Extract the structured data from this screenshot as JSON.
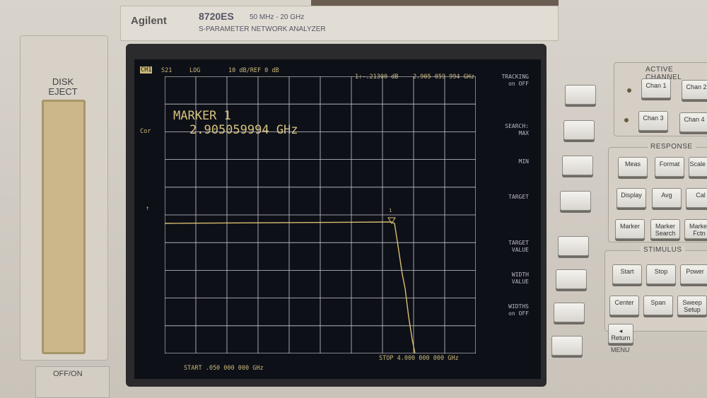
{
  "header": {
    "brand": "Agilent",
    "model": "8720ES",
    "frequency_range": "50 MHz - 20 GHz",
    "description": "S-PARAMETER NETWORK ANALYZER"
  },
  "left_panel": {
    "disk_eject": "DISK EJECT",
    "power_label": "OFF/ON"
  },
  "display": {
    "channel": "CH1",
    "parameter": "S21",
    "format": "LOG",
    "scale": "10 dB/REF 0 dB",
    "marker_readout": "1:-.21300 dB",
    "marker_freq_readout": "2.905 059 994 GHz",
    "marker_title": "MARKER 1",
    "marker_value": "2.905059994 GHz",
    "correction": "Cor",
    "ref_arrow": "↑",
    "marker_num": "1",
    "start": "START .050 000 000 GHz",
    "stop": "STOP 4.000 000 000 GHz",
    "trace_color": "#d8c070",
    "grid_color": "#c8c8d0"
  },
  "softkeys": [
    {
      "line1": "TRACKING",
      "line2": "on OFF"
    },
    {
      "line1": "SEARCH:",
      "line2": "MAX"
    },
    {
      "line1": "MIN",
      "line2": ""
    },
    {
      "line1": "TARGET",
      "line2": ""
    },
    {
      "line1": "TARGET",
      "line2": "VALUE"
    },
    {
      "line1": "WIDTH",
      "line2": "VALUE"
    },
    {
      "line1": "WIDTHS",
      "line2": "on OFF"
    },
    {
      "line1": "",
      "line2": ""
    }
  ],
  "active_channel": {
    "title": "ACTIVE CHANNEL",
    "keys": [
      "Chan 1",
      "Chan 2",
      "Chan 3",
      "Chan 4"
    ]
  },
  "response": {
    "title": "RESPONSE",
    "keys": [
      "Meas",
      "Format",
      "Scale Ref",
      "Display",
      "Avg",
      "Cal",
      "Marker",
      "Marker Search",
      "Marker Fctn"
    ]
  },
  "stimulus": {
    "title": "STIMULUS",
    "keys": [
      "Start",
      "Stop",
      "Power",
      "Center",
      "Span",
      "Sweep Setup"
    ]
  },
  "menu": {
    "return": "◂ Return",
    "title": "MENU"
  }
}
